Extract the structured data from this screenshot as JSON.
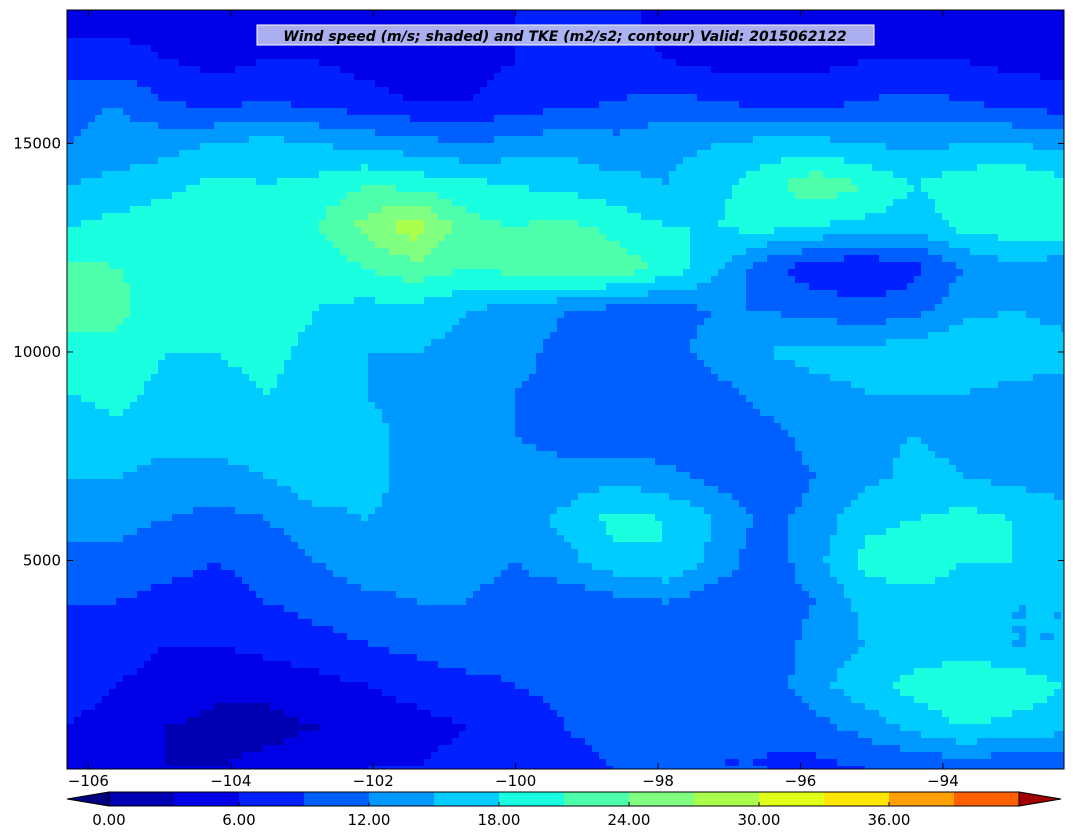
{
  "chart_data": {
    "type": "heatmap",
    "title": "Wind speed (m/s; shaded) and TKE (m2/s2; contour) Valid: 2015062122",
    "xlabel": "",
    "ylabel": "",
    "xlim": [
      -106.3,
      -92.3
    ],
    "ylim": [
      0,
      18200
    ],
    "x_ticks": [
      -106,
      -104,
      -102,
      -100,
      -98,
      -96,
      -94
    ],
    "x_tick_labels": [
      "−106",
      "−104",
      "−102",
      "−100",
      "−98",
      "−96",
      "−94"
    ],
    "y_ticks": [
      5000,
      10000,
      15000
    ],
    "y_tick_labels": [
      "5000",
      "10000",
      "15000"
    ],
    "grid": false,
    "colorbar": {
      "orientation": "horizontal",
      "position": "bottom",
      "levels": [
        0,
        3,
        6,
        9,
        12,
        15,
        18,
        21,
        24,
        27,
        30,
        33,
        36,
        39,
        42
      ],
      "colors": [
        "#000080",
        "#0000b2",
        "#0000e6",
        "#0020ff",
        "#0060ff",
        "#0099ff",
        "#00ccff",
        "#19ffe0",
        "#4dffaa",
        "#80ff80",
        "#aaff4d",
        "#e0ff19",
        "#ffe600",
        "#ffa000",
        "#ff6000",
        "#ff2a00",
        "#e60000",
        "#a00000"
      ],
      "tick_values": [
        0,
        6,
        12,
        18,
        24,
        30,
        36
      ],
      "tick_labels": [
        "0.00",
        "6.00",
        "12.00",
        "18.00",
        "24.00",
        "30.00",
        "36.00"
      ],
      "extend": "both"
    },
    "z_grid": {
      "x": [
        -106.3,
        -105.6,
        -104.9,
        -104.2,
        -103.5,
        -102.8,
        -102.1,
        -101.4,
        -100.7,
        -100.0,
        -99.3,
        -98.6,
        -97.9,
        -97.2,
        -96.5,
        -95.8,
        -95.1,
        -94.4,
        -93.7,
        -93.0,
        -92.3
      ],
      "y": [
        0,
        1000,
        2000,
        3000,
        4000,
        5000,
        6000,
        7000,
        8000,
        9000,
        10000,
        11000,
        12000,
        13000,
        14000,
        15000,
        16000,
        17000,
        18000
      ],
      "values": [
        [
          5,
          4,
          3,
          3,
          4,
          5,
          6,
          6,
          7,
          8,
          8,
          9,
          9,
          9,
          9,
          8,
          9,
          9,
          10,
          9,
          9
        ],
        [
          6,
          5,
          3,
          2,
          2,
          3,
          4,
          5,
          6,
          7,
          9,
          10,
          10,
          9,
          9,
          11,
          13,
          16,
          18,
          17,
          16
        ],
        [
          7,
          6,
          5,
          4,
          4,
          5,
          6,
          7,
          8,
          9,
          10,
          11,
          11,
          10,
          10,
          14,
          17,
          19,
          21,
          20,
          18
        ],
        [
          8,
          7,
          6,
          6,
          7,
          8,
          9,
          10,
          11,
          10,
          9,
          10,
          10,
          9,
          10,
          13,
          15,
          16,
          16,
          15,
          15
        ],
        [
          9,
          9,
          8,
          8,
          9,
          10,
          11,
          12,
          12,
          11,
          10,
          11,
          12,
          10,
          10,
          12,
          16,
          17,
          16,
          15,
          15
        ],
        [
          11,
          11,
          10,
          9,
          10,
          12,
          14,
          14,
          13,
          12,
          14,
          17,
          18,
          14,
          10,
          14,
          19,
          20,
          18,
          18,
          17
        ],
        [
          13,
          13,
          12,
          11,
          12,
          14,
          15,
          14,
          12,
          13,
          16,
          19,
          18,
          15,
          11,
          13,
          17,
          18,
          19,
          18,
          17
        ],
        [
          15,
          15,
          14,
          14,
          15,
          17,
          16,
          14,
          13,
          13,
          13,
          14,
          13,
          11,
          10,
          12,
          14,
          16,
          15,
          14,
          13
        ],
        [
          16,
          17,
          16,
          16,
          17,
          18,
          16,
          14,
          13,
          12,
          11,
          10,
          10,
          10,
          11,
          13,
          14,
          15,
          14,
          13,
          13
        ],
        [
          18,
          19,
          17,
          17,
          18,
          17,
          15,
          14,
          13,
          12,
          11,
          10,
          10,
          11,
          13,
          14,
          15,
          15,
          15,
          14,
          14
        ],
        [
          20,
          20,
          18,
          18,
          19,
          17,
          15,
          15,
          14,
          13,
          11,
          10,
          11,
          13,
          15,
          16,
          16,
          17,
          18,
          17,
          16
        ],
        [
          22,
          22,
          19,
          19,
          20,
          18,
          17,
          17,
          15,
          14,
          12,
          11,
          11,
          12,
          12,
          11,
          10,
          11,
          14,
          15,
          14
        ],
        [
          22,
          21,
          20,
          20,
          19,
          19,
          21,
          23,
          21,
          22,
          24,
          23,
          20,
          16,
          10,
          7,
          6,
          8,
          12,
          14,
          13
        ],
        [
          18,
          19,
          20,
          21,
          20,
          21,
          25,
          29,
          22,
          21,
          22,
          20,
          18,
          18,
          19,
          18,
          17,
          16,
          19,
          20,
          20
        ],
        [
          15,
          16,
          17,
          19,
          18,
          19,
          21,
          20,
          19,
          18,
          17,
          16,
          15,
          17,
          20,
          23,
          21,
          18,
          20,
          21,
          19
        ],
        [
          12,
          13,
          14,
          15,
          16,
          15,
          14,
          13,
          12,
          13,
          14,
          13,
          14,
          15,
          16,
          16,
          15,
          14,
          15,
          15,
          14
        ],
        [
          11,
          12,
          9,
          8,
          9,
          8,
          7,
          6,
          6,
          7,
          8,
          9,
          10,
          9,
          8,
          8,
          9,
          10,
          9,
          8,
          7
        ],
        [
          7,
          7,
          6,
          5,
          6,
          6,
          5,
          4,
          5,
          6,
          6,
          7,
          6,
          5,
          5,
          5,
          6,
          6,
          6,
          5,
          5
        ],
        [
          5,
          5,
          5,
          5,
          5,
          5,
          4,
          4,
          5,
          6,
          7,
          7,
          5,
          4,
          4,
          4,
          5,
          5,
          4,
          4,
          4
        ]
      ]
    }
  }
}
